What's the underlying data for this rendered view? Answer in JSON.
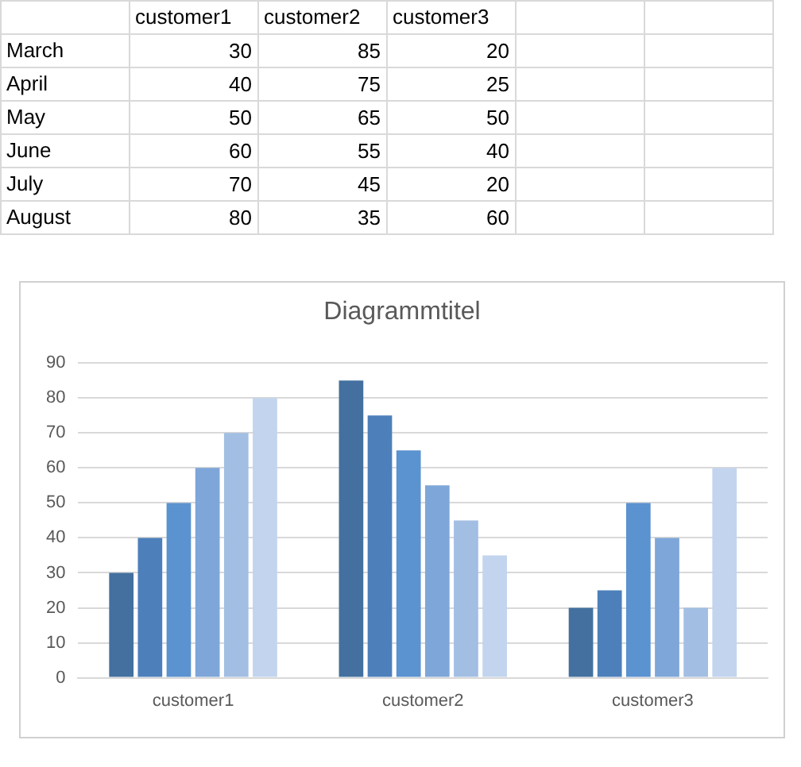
{
  "chart_data": [
    {
      "type": "heatmap",
      "categories": [
        "customer1",
        "customer2",
        "customer3"
      ],
      "y_categories": [
        "March",
        "April",
        "May",
        "June",
        "July",
        "August"
      ],
      "cells": [
        [
          30,
          85,
          20
        ],
        [
          40,
          75,
          25
        ],
        [
          50,
          65,
          50
        ],
        [
          60,
          55,
          40
        ],
        [
          70,
          45,
          20
        ],
        [
          80,
          35,
          60
        ]
      ],
      "data_labels": true
    },
    {
      "type": "bar",
      "title": "Diagrammtitel",
      "categories": [
        "customer1",
        "customer2",
        "customer3"
      ],
      "series": [
        {
          "color": "#43709f",
          "values": [
            30,
            85,
            20
          ]
        },
        {
          "color": "#4d80bb",
          "values": [
            40,
            75,
            25
          ]
        },
        {
          "color": "#5b92d0",
          "values": [
            50,
            65,
            50
          ]
        },
        {
          "color": "#7ea6d9",
          "values": [
            60,
            55,
            40
          ]
        },
        {
          "color": "#a2bee3",
          "values": [
            70,
            45,
            20
          ]
        },
        {
          "color": "#c2d4ee",
          "values": [
            80,
            35,
            60
          ]
        }
      ],
      "ylim": [
        0,
        90
      ],
      "yticks": [
        0,
        10,
        20,
        30,
        40,
        50,
        60,
        70,
        80,
        90
      ],
      "grid": "y",
      "legend": false
    }
  ]
}
